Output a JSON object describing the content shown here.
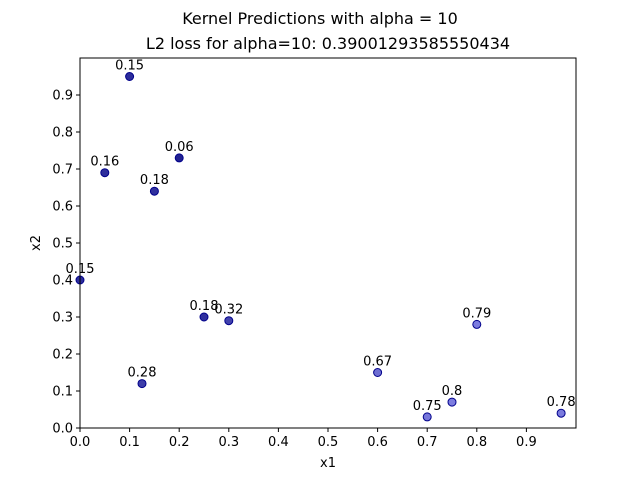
{
  "chart_data": {
    "type": "scatter",
    "title": "Kernel Predictions with alpha = 10",
    "subtitle": "L2 loss for alpha=10: 0.39001293585550434",
    "xlabel": "x1",
    "ylabel": "x2",
    "xlim": [
      0,
      1
    ],
    "ylim": [
      0,
      1
    ],
    "xticks": [
      "0.0",
      "0.1",
      "0.2",
      "0.3",
      "0.4",
      "0.5",
      "0.6",
      "0.7",
      "0.8",
      "0.9"
    ],
    "yticks": [
      "0.0",
      "0.1",
      "0.2",
      "0.3",
      "0.4",
      "0.5",
      "0.6",
      "0.7",
      "0.8",
      "0.9"
    ],
    "grid": false,
    "edge_color": "#00008b",
    "points": [
      {
        "x": 0.1,
        "y": 0.95,
        "label": "0.15",
        "value": 0.15
      },
      {
        "x": 0.2,
        "y": 0.73,
        "label": "0.06",
        "value": 0.06
      },
      {
        "x": 0.05,
        "y": 0.69,
        "label": "0.16",
        "value": 0.16
      },
      {
        "x": 0.15,
        "y": 0.64,
        "label": "0.18",
        "value": 0.18
      },
      {
        "x": 0.0,
        "y": 0.4,
        "label": "0.15",
        "value": 0.15
      },
      {
        "x": 0.25,
        "y": 0.3,
        "label": "0.18",
        "value": 0.18
      },
      {
        "x": 0.3,
        "y": 0.29,
        "label": "0.32",
        "value": 0.32
      },
      {
        "x": 0.125,
        "y": 0.12,
        "label": "0.28",
        "value": 0.28
      },
      {
        "x": 0.8,
        "y": 0.28,
        "label": "0.79",
        "value": 0.79
      },
      {
        "x": 0.6,
        "y": 0.15,
        "label": "0.67",
        "value": 0.67
      },
      {
        "x": 0.75,
        "y": 0.07,
        "label": "0.8",
        "value": 0.8
      },
      {
        "x": 0.7,
        "y": 0.03,
        "label": "0.75",
        "value": 0.75
      },
      {
        "x": 0.97,
        "y": 0.04,
        "label": "0.78",
        "value": 0.78
      }
    ]
  }
}
